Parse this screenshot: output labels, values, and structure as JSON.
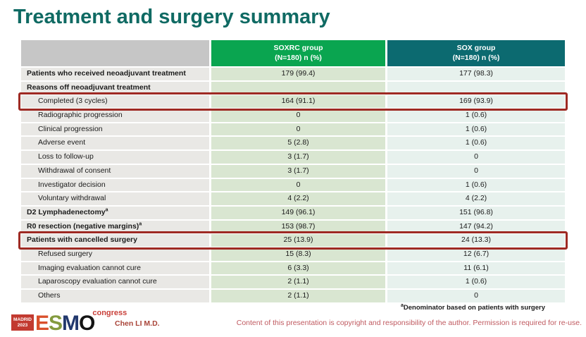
{
  "slide": {
    "title": "Treatment and surgery summary",
    "presenter": "Chen LI M.D.",
    "footnote_sup": "a",
    "footnote": "Denominator based on patients with surgery",
    "copyright": "Content of this presentation is copyright and responsibility of the author. Permission is required for re-use."
  },
  "logo": {
    "location": "MADRID",
    "year": "2023",
    "letters": [
      "E",
      "S",
      "M",
      "O"
    ],
    "congress": "congress"
  },
  "colors": {
    "title": "#0f6a63",
    "soxrc_header": "#0aa550",
    "sox_header": "#0c6a70",
    "label_header": "#c6c6c6",
    "label_cell": "#e9e8e5",
    "soxrc_cell": "#d9e6d1",
    "sox_cell": "#e7f1ed",
    "highlight_border": "#9e2a23",
    "footer_red": "#c05a60"
  },
  "table": {
    "columns": [
      {
        "group": "",
        "sub": ""
      },
      {
        "group": "SOXRC group",
        "sub": "(N=180)  n (%)"
      },
      {
        "group": "SOX group",
        "sub": "(N=180)  n (%)"
      }
    ],
    "rows": [
      {
        "label": "Patients who received neoadjuvant treatment",
        "soxrc": "179 (99.4)",
        "sox": "177 (98.3)",
        "bold": true,
        "indent": false,
        "highlight": false
      },
      {
        "label": "Reasons off neoadjuvant treatment",
        "soxrc": "",
        "sox": "",
        "bold": true,
        "indent": false,
        "highlight": false
      },
      {
        "label": "Completed (3 cycles)",
        "soxrc": "164 (91.1)",
        "sox": "169 (93.9)",
        "bold": false,
        "indent": true,
        "highlight": true
      },
      {
        "label": "Radiographic progression",
        "soxrc": "0",
        "sox": "1 (0.6)",
        "bold": false,
        "indent": true,
        "highlight": false
      },
      {
        "label": "Clinical progression",
        "soxrc": "0",
        "sox": "1 (0.6)",
        "bold": false,
        "indent": true,
        "highlight": false
      },
      {
        "label": "Adverse event",
        "soxrc": "5 (2.8)",
        "sox": "1 (0.6)",
        "bold": false,
        "indent": true,
        "highlight": false
      },
      {
        "label": "Loss to follow-up",
        "soxrc": "3 (1.7)",
        "sox": "0",
        "bold": false,
        "indent": true,
        "highlight": false
      },
      {
        "label": "Withdrawal of consent",
        "soxrc": "3 (1.7)",
        "sox": "0",
        "bold": false,
        "indent": true,
        "highlight": false
      },
      {
        "label": "Investigator decision",
        "soxrc": "0",
        "sox": "1 (0.6)",
        "bold": false,
        "indent": true,
        "highlight": false
      },
      {
        "label": "Voluntary withdrawal",
        "soxrc": "4 (2.2)",
        "sox": "4 (2.2)",
        "bold": false,
        "indent": true,
        "highlight": false
      },
      {
        "label": "D2 Lymphadenectomy",
        "sup": "a",
        "soxrc": "149 (96.1)",
        "sox": "151 (96.8)",
        "bold": true,
        "indent": false,
        "highlight": false
      },
      {
        "label": "R0 resection (negative margins)",
        "sup": "a",
        "soxrc": "153 (98.7)",
        "sox": "147 (94.2)",
        "bold": true,
        "indent": false,
        "highlight": false
      },
      {
        "label": "Patients with cancelled surgery",
        "soxrc": "25 (13.9)",
        "sox": "24 (13.3)",
        "bold": true,
        "indent": false,
        "highlight": true
      },
      {
        "label": "Refused surgery",
        "soxrc": "15 (8.3)",
        "sox": "12 (6.7)",
        "bold": false,
        "indent": true,
        "highlight": false
      },
      {
        "label": "Imaging evaluation cannot cure",
        "soxrc": "6 (3.3)",
        "sox": "11 (6.1)",
        "bold": false,
        "indent": true,
        "highlight": false
      },
      {
        "label": "Laparoscopy evaluation cannot cure",
        "soxrc": "2 (1.1)",
        "sox": "1 (0.6)",
        "bold": false,
        "indent": true,
        "highlight": false
      },
      {
        "label": "Others",
        "soxrc": "2 (1.1)",
        "sox": "0",
        "bold": false,
        "indent": true,
        "highlight": false
      }
    ]
  }
}
